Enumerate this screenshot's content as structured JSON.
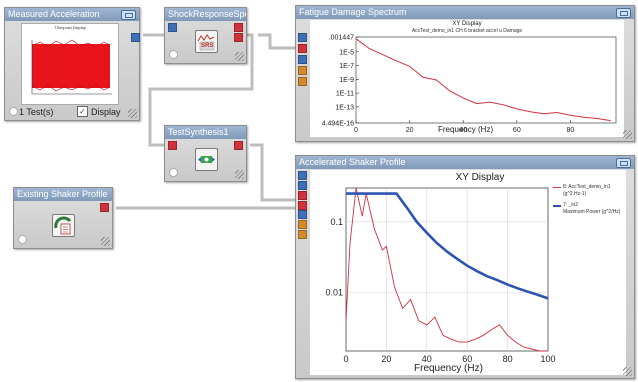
{
  "nodes": {
    "measured": {
      "title": "Measured Acceleration",
      "mini_plot_title": "TSimpulsi Display",
      "tests_label": "1 Test(s)",
      "display_label": "Display",
      "display_checked": true
    },
    "srs": {
      "title": "ShockResponseSpec",
      "icon": "srs-icon",
      "icon_text": "SRS"
    },
    "synth": {
      "title": "TestSynthesis1",
      "icon": "synthesis-icon"
    },
    "existing": {
      "title": "Existing Shaker Profile",
      "icon": "document-icon"
    }
  },
  "fatigue": {
    "title": "Fatigue Damage Spectrum",
    "chart_title": "XY Display",
    "chart_subtitle": "AccTest_demo_in1  CH 6  bracket accel u  Damage",
    "y_ticks": [
      ".001447",
      "1E-5",
      "1E-7",
      "1E-9",
      "1E-11",
      "1E-13",
      "4.494E-16"
    ],
    "x_ticks": [
      "0",
      "20",
      "40",
      "60",
      "80"
    ],
    "xlabel": "Frequency (Hz)"
  },
  "accel": {
    "title": "Accelerated Shaker Profile",
    "chart_title": "XY Display",
    "y_ticks": [
      "0.1",
      "0.01"
    ],
    "x_ticks": [
      "0",
      "20",
      "40",
      "60",
      "80",
      "100"
    ],
    "xlabel": "Frequency (Hz)",
    "legend": [
      {
        "label": "8: AccTest_demo_in1",
        "sub": "(g^2.Hz-1)",
        "color": "#d0323c"
      },
      {
        "label": "7: _in2",
        "sub": "Maximum Power (g^2/Hz)",
        "color": "#2f54b0"
      }
    ]
  },
  "chart_data": [
    {
      "type": "line",
      "title": "XY Display",
      "subtitle": "AccTest_demo_in1  CH 6  bracket accel u  Damage",
      "xlabel": "Frequency (Hz)",
      "ylabel": "",
      "xlim": [
        0,
        97
      ],
      "y_scale": "log",
      "ylim": [
        4.494e-16,
        0.001447
      ],
      "x_ticks": [
        0,
        20,
        40,
        60,
        80
      ],
      "y_ticks": [
        0.001447,
        1e-05,
        1e-07,
        1e-09,
        1e-11,
        1e-13,
        4.494e-16
      ],
      "series": [
        {
          "color": "#d0323c",
          "x": [
            0,
            5,
            10,
            15,
            20,
            25,
            30,
            35,
            40,
            45,
            50,
            55,
            60,
            65,
            70,
            75,
            80,
            85,
            90,
            95
          ],
          "y": [
            0.0008,
            3e-05,
            4e-06,
            5e-07,
            8e-08,
            2e-09,
            8e-10,
            2e-11,
            2e-12,
            3e-13,
            5e-13,
            2e-13,
            5e-14,
            2e-14,
            1e-14,
            1.5e-14,
            6e-15,
            3e-15,
            2e-15,
            1e-15
          ]
        }
      ]
    },
    {
      "type": "line",
      "title": "XY Display",
      "xlabel": "Frequency (Hz)",
      "ylabel": "",
      "xlim": [
        0,
        100
      ],
      "y_scale": "log",
      "ylim": [
        0.0015,
        0.3
      ],
      "x_ticks": [
        0,
        20,
        40,
        60,
        80,
        100
      ],
      "y_ticks": [
        0.1,
        0.01
      ],
      "legend_position": "top-right",
      "series": [
        {
          "name": "8: AccTest_demo_in1",
          "color": "#d0323c",
          "x": [
            0,
            2,
            5,
            8,
            10,
            14,
            18,
            20,
            24,
            28,
            32,
            36,
            40,
            44,
            48,
            52,
            56,
            60,
            64,
            68,
            72,
            76,
            80,
            84,
            88,
            92,
            96,
            100
          ],
          "y": [
            0.004,
            0.05,
            0.3,
            0.12,
            0.25,
            0.08,
            0.04,
            0.045,
            0.012,
            0.006,
            0.008,
            0.004,
            0.0035,
            0.0045,
            0.0025,
            0.0022,
            0.002,
            0.002,
            0.0022,
            0.0025,
            0.003,
            0.0035,
            0.0025,
            0.002,
            0.0017,
            0.0016,
            0.0015,
            0.0015
          ]
        },
        {
          "name": "7: _in2",
          "color": "#2f54b0",
          "x": [
            0,
            5,
            10,
            15,
            20,
            25,
            30,
            35,
            40,
            45,
            50,
            55,
            60,
            65,
            70,
            75,
            80,
            85,
            90,
            95,
            100
          ],
          "y": [
            0.25,
            0.25,
            0.25,
            0.25,
            0.25,
            0.25,
            0.16,
            0.1,
            0.07,
            0.05,
            0.038,
            0.03,
            0.024,
            0.02,
            0.017,
            0.015,
            0.013,
            0.0115,
            0.0103,
            0.0093,
            0.0083
          ]
        }
      ]
    }
  ]
}
